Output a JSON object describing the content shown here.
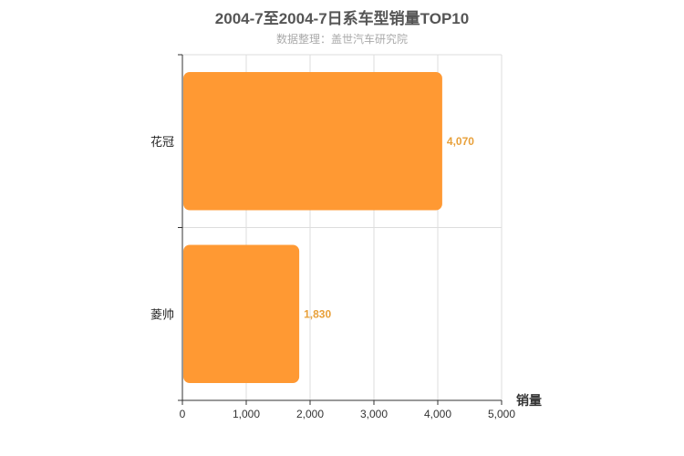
{
  "title": "2004-7至2004-7日系车型销量TOP10",
  "subtitle": "数据整理：盖世汽车研究院",
  "chart_data": {
    "type": "bar",
    "orientation": "horizontal",
    "categories": [
      "花冠",
      "菱帅"
    ],
    "values": [
      4070,
      1830
    ],
    "value_labels": [
      "4,070",
      "1,830"
    ],
    "xlabel": "销量",
    "xlim": [
      0,
      5000
    ],
    "xticks": [
      0,
      1000,
      2000,
      3000,
      4000,
      5000
    ],
    "xtick_labels": [
      "0",
      "1,000",
      "2,000",
      "3,000",
      "4,000",
      "5,000"
    ],
    "grid": true,
    "bar_color": "#ff9933",
    "label_color": "#e8a03a"
  }
}
